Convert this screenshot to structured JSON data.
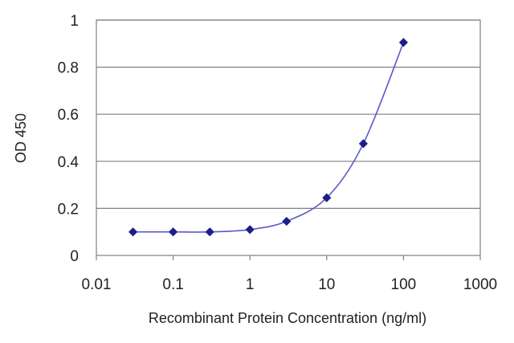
{
  "chart_data": {
    "type": "scatter",
    "title": "",
    "xlabel": "Recombinant Protein Concentration (ng/ml)",
    "ylabel": "OD 450",
    "x_scale": "log",
    "xlim": [
      0.01,
      1000
    ],
    "ylim": [
      0,
      1
    ],
    "x_ticks": [
      "0.01",
      "0.1",
      "1",
      "10",
      "100",
      "1000"
    ],
    "y_ticks": [
      "0",
      "0.2",
      "0.4",
      "0.6",
      "0.8",
      "1"
    ],
    "grid": "horizontal",
    "legend": "none",
    "series": [
      {
        "x": [
          0.03,
          0.1,
          0.3,
          1,
          3,
          10,
          30,
          100
        ],
        "y": [
          0.1,
          0.1,
          0.1,
          0.11,
          0.145,
          0.245,
          0.475,
          0.905
        ],
        "marker": "diamond",
        "fitted_curve": true,
        "color": "#2a2a9a"
      }
    ],
    "colors": {
      "line": "#5a5ac6",
      "marker": "#1e1e8a",
      "grid": "#808080",
      "frame": "#808080"
    }
  }
}
